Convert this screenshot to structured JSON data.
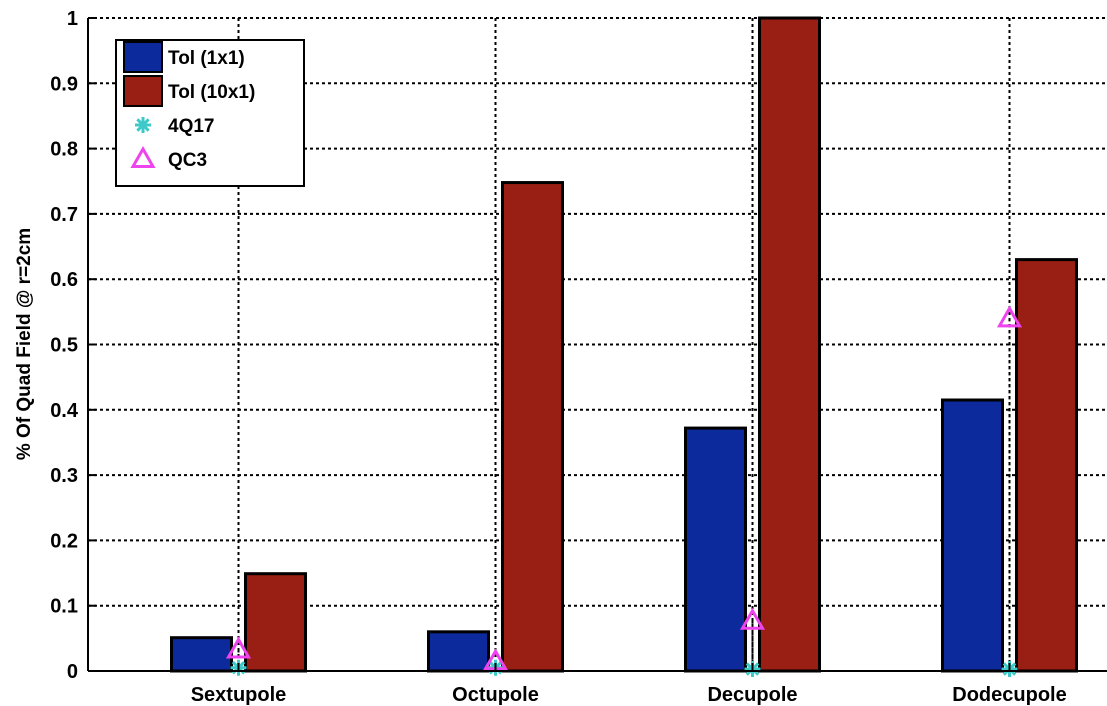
{
  "chart_data": {
    "type": "bar",
    "title": "",
    "xlabel": "",
    "ylabel": "% Of Quad Field @ r=2cm",
    "ylim": [
      0,
      1
    ],
    "yticks": [
      "0",
      "0.1",
      "0.2",
      "0.3",
      "0.4",
      "0.5",
      "0.6",
      "0.7",
      "0.8",
      "0.9",
      "1"
    ],
    "grid": true,
    "legend_position": "top-left",
    "categories": [
      "Sextupole",
      "Octupole",
      "Decupole",
      "Dodecupole"
    ],
    "series": [
      {
        "name": "Tol (1x1)",
        "kind": "bar",
        "color": "#0c2a9c",
        "values": [
          0.051,
          0.06,
          0.372,
          0.415
        ]
      },
      {
        "name": "Tol (10x1)",
        "kind": "bar",
        "color": "#991e13",
        "values": [
          0.149,
          0.748,
          1.0,
          0.63
        ]
      },
      {
        "name": "4Q17",
        "kind": "marker",
        "marker": "asterisk",
        "color": "#3ec9c9",
        "values": [
          0.005,
          0.005,
          0.003,
          0.003
        ]
      },
      {
        "name": "QC3",
        "kind": "marker",
        "marker": "triangle",
        "color": "#ee44ee",
        "values": [
          0.033,
          0.015,
          0.077,
          0.54
        ]
      }
    ]
  }
}
